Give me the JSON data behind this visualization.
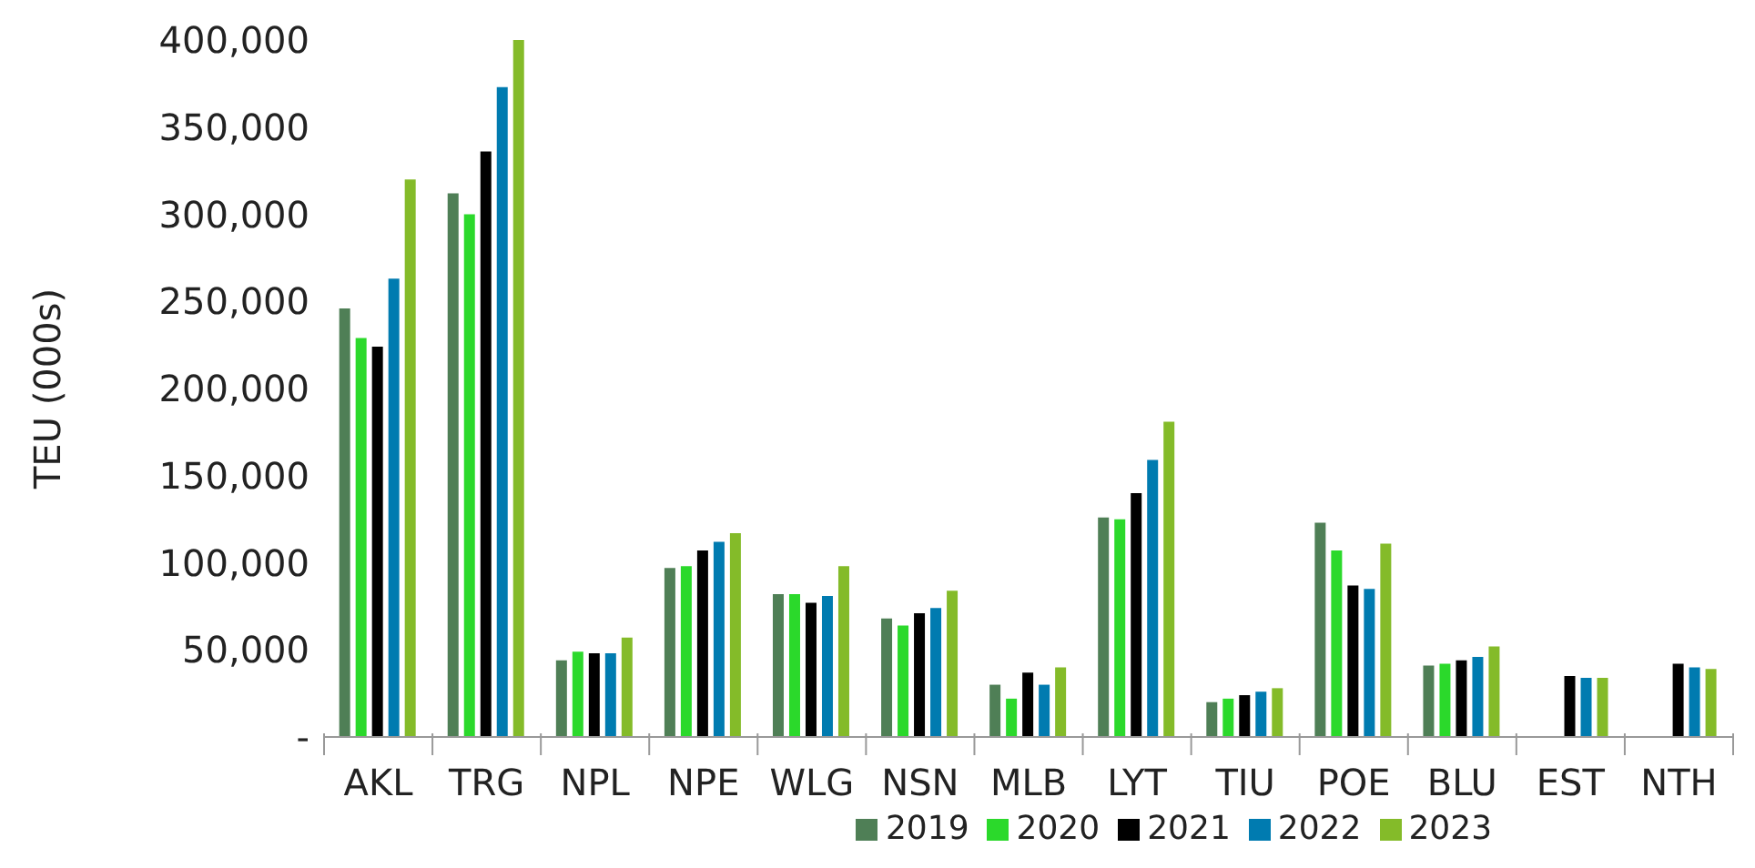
{
  "chart_data": {
    "type": "bar",
    "ylabel": "TEU (000s)",
    "categories": [
      "AKL",
      "TRG",
      "NPL",
      "NPE",
      "WLG",
      "NSN",
      "MLB",
      "LYT",
      "TIU",
      "POE",
      "BLU",
      "EST",
      "NTH"
    ],
    "series": [
      {
        "name": "2019",
        "color": "#4f7f56",
        "values": [
          246000,
          312000,
          44000,
          97000,
          82000,
          68000,
          30000,
          126000,
          20000,
          123000,
          41000,
          null,
          null
        ]
      },
      {
        "name": "2020",
        "color": "#2bd92b",
        "values": [
          229000,
          300000,
          49000,
          98000,
          82000,
          64000,
          22000,
          125000,
          22000,
          107000,
          42000,
          null,
          null
        ]
      },
      {
        "name": "2021",
        "color": "#000000",
        "values": [
          224000,
          336000,
          48000,
          107000,
          77000,
          71000,
          37000,
          140000,
          24000,
          87000,
          44000,
          35000,
          42000
        ]
      },
      {
        "name": "2022",
        "color": "#007bb0",
        "values": [
          263000,
          373000,
          48000,
          112000,
          81000,
          74000,
          30000,
          159000,
          26000,
          85000,
          46000,
          34000,
          40000
        ]
      },
      {
        "name": "2023",
        "color": "#84bb29",
        "values": [
          320000,
          400000,
          57000,
          117000,
          98000,
          84000,
          40000,
          181000,
          28000,
          111000,
          52000,
          34000,
          39000
        ]
      }
    ],
    "ylim": [
      0,
      400000
    ],
    "yticks": [
      {
        "value": 0,
        "label": "-"
      },
      {
        "value": 50000,
        "label": "50,000"
      },
      {
        "value": 100000,
        "label": "100,000"
      },
      {
        "value": 150000,
        "label": "150,000"
      },
      {
        "value": 200000,
        "label": "200,000"
      },
      {
        "value": 250000,
        "label": "250,000"
      },
      {
        "value": 300000,
        "label": "300,000"
      },
      {
        "value": 350000,
        "label": "350,000"
      },
      {
        "value": 400000,
        "label": "400,000"
      }
    ],
    "grid": false,
    "legend": "bottom"
  }
}
